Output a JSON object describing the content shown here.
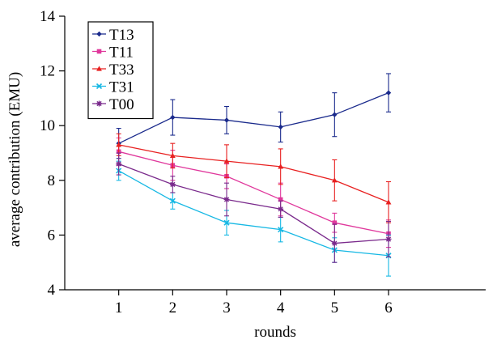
{
  "chart_data": {
    "type": "line",
    "title": "",
    "xlabel": "rounds",
    "ylabel": "average contribution (EMU)",
    "x": [
      1,
      2,
      3,
      4,
      5,
      6
    ],
    "x_ticks": [
      "1",
      "2",
      "3",
      "4",
      "5",
      "6"
    ],
    "y_ticks": [
      "4",
      "6",
      "8",
      "10",
      "12",
      "14"
    ],
    "xlim": [
      0,
      7.8
    ],
    "ylim": [
      4,
      14
    ],
    "grid": false,
    "legend_position": "top-left",
    "series": [
      {
        "name": "T13",
        "color": "#1a2a8c",
        "marker": "diamond",
        "values": [
          9.35,
          10.3,
          10.2,
          9.95,
          10.4,
          11.2
        ],
        "errors": [
          0.55,
          0.65,
          0.5,
          0.55,
          0.8,
          0.7
        ]
      },
      {
        "name": "T11",
        "color": "#e0389c",
        "marker": "square",
        "values": [
          9.05,
          8.55,
          8.15,
          7.3,
          6.45,
          6.05
        ],
        "errors": [
          0.5,
          0.55,
          0.45,
          0.6,
          0.35,
          0.5
        ]
      },
      {
        "name": "T33",
        "color": "#e82020",
        "marker": "triangle",
        "values": [
          9.3,
          8.9,
          8.7,
          8.5,
          8.0,
          7.2
        ],
        "errors": [
          0.4,
          0.45,
          0.6,
          0.65,
          0.75,
          0.75
        ]
      },
      {
        "name": "T31",
        "color": "#16b8e4",
        "marker": "cross",
        "values": [
          8.35,
          7.25,
          6.45,
          6.2,
          5.45,
          5.25
        ],
        "errors": [
          0.35,
          0.3,
          0.45,
          0.45,
          0.45,
          0.75
        ]
      },
      {
        "name": "T00",
        "color": "#7a2a8c",
        "marker": "star",
        "values": [
          8.6,
          7.85,
          7.3,
          6.95,
          5.7,
          5.85
        ],
        "errors": [
          0.4,
          0.3,
          0.6,
          0.3,
          0.7,
          0.65
        ]
      }
    ]
  }
}
